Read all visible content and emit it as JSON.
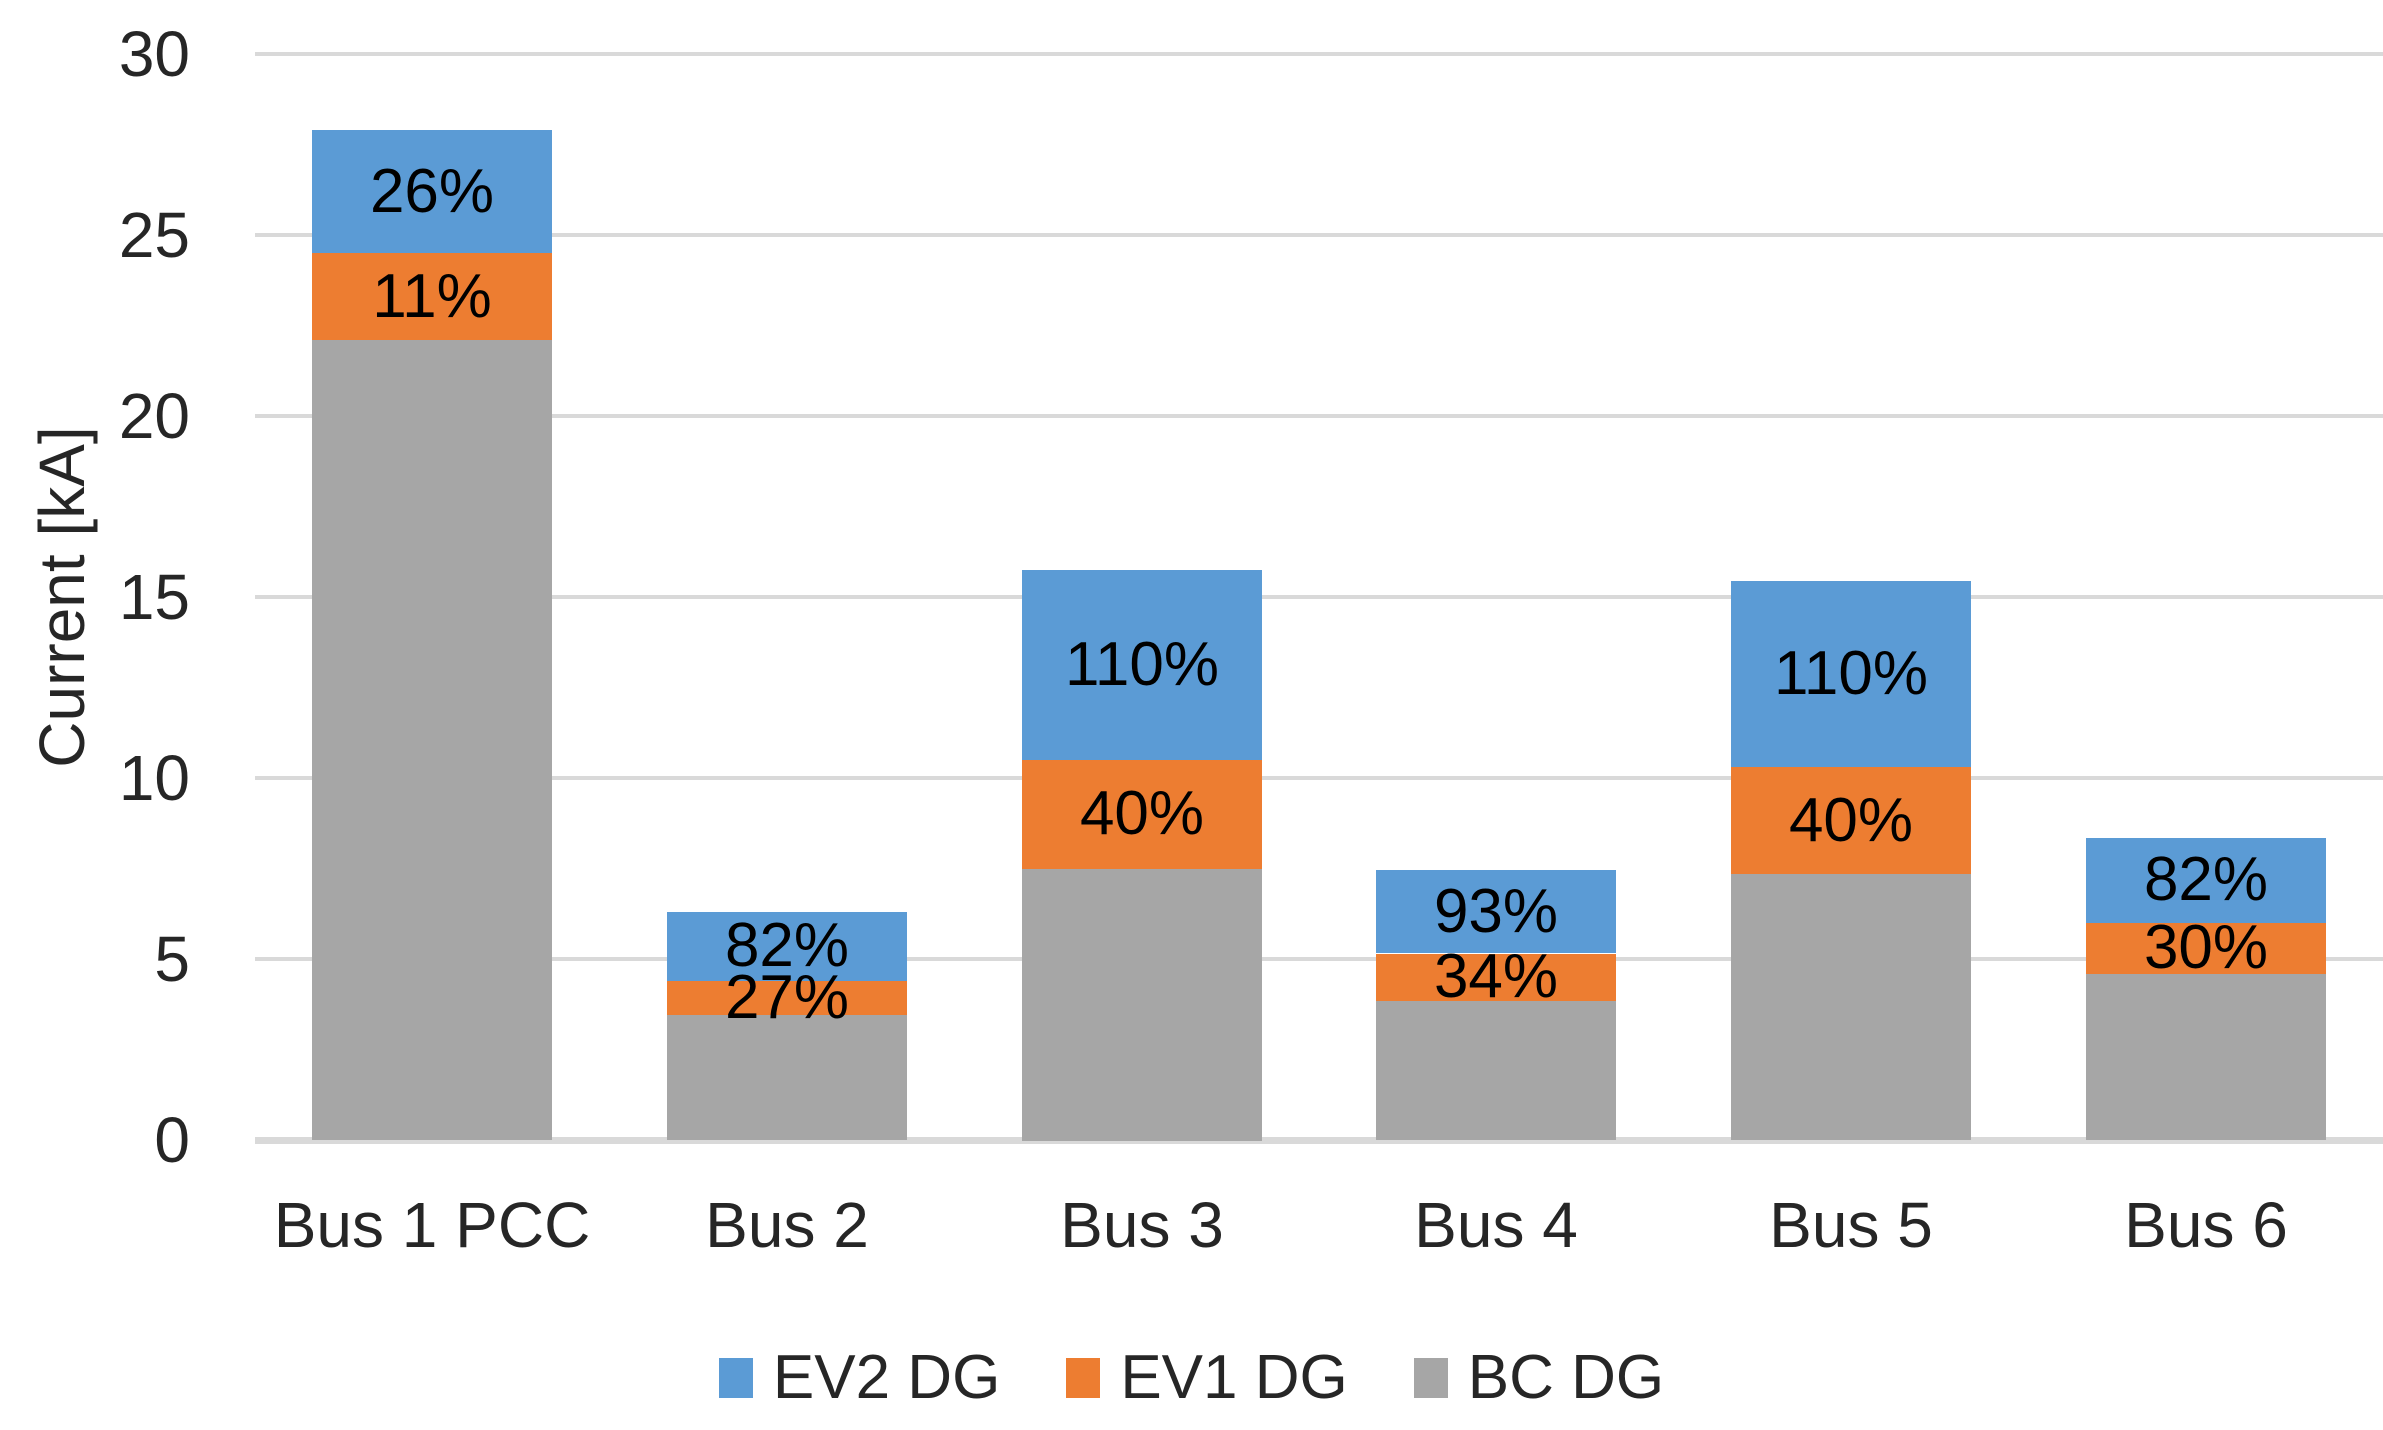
{
  "chart_data": {
    "type": "bar",
    "stacked": true,
    "title": "",
    "ylabel": "Current [kA]",
    "xlabel": "",
    "categories": [
      "Bus 1 PCC",
      "Bus 2",
      "Bus 3",
      "Bus 4",
      "Bus 5",
      "Bus 6"
    ],
    "series": [
      {
        "name": "BC DG",
        "color": "#A6A6A6",
        "values": [
          22.1,
          3.45,
          7.5,
          3.85,
          7.35,
          4.6
        ],
        "labels": [
          "",
          "",
          "",
          "",
          "",
          ""
        ]
      },
      {
        "name": "EV1 DG",
        "color": "#ED7D31",
        "values": [
          2.4,
          0.95,
          3.0,
          1.3,
          2.95,
          1.4
        ],
        "labels": [
          "11%",
          "27%",
          "40%",
          "34%",
          "40%",
          "30%"
        ]
      },
      {
        "name": "EV2 DG",
        "color": "#5B9BD5",
        "values": [
          3.4,
          1.9,
          5.25,
          2.3,
          5.15,
          2.35
        ],
        "labels": [
          "26%",
          "82%",
          "110%",
          "93%",
          "110%",
          "82%"
        ]
      }
    ],
    "y_ticks": [
      0,
      5,
      10,
      15,
      20,
      25,
      30
    ],
    "ylim": [
      0,
      30
    ],
    "grid": true,
    "legend": {
      "position": "bottom",
      "items": [
        {
          "label": "EV2 DG",
          "color": "#5B9BD5"
        },
        {
          "label": "EV1 DG",
          "color": "#ED7D31"
        },
        {
          "label": "BC DG",
          "color": "#A6A6A6"
        }
      ]
    },
    "colors": {
      "gridline": "#D9D9D9",
      "axis_text": "#262626",
      "data_label_text": "#000000",
      "background": "#FFFFFF"
    }
  }
}
